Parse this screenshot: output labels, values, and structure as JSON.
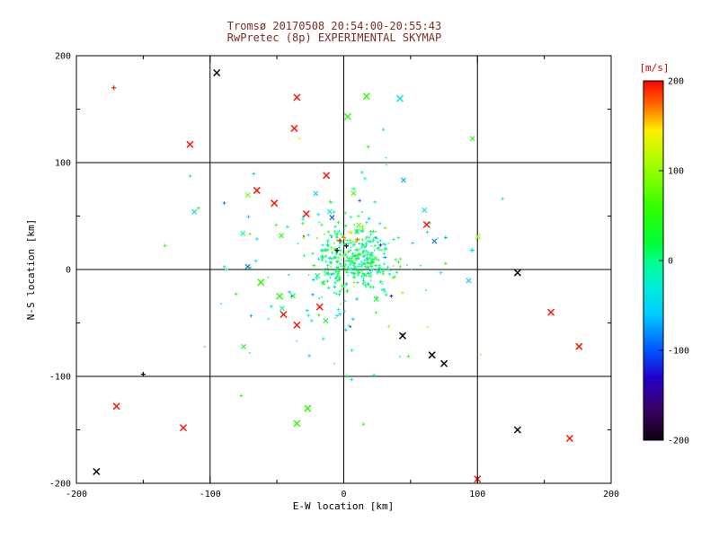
{
  "chart_data": {
    "type": "scatter",
    "title": "Tromsø 20170508 20:54:00-20:55:43",
    "subtitle": "RwPretec (8p) EXPERIMENTAL SKYMAP",
    "xlabel": "E-W location [km]",
    "ylabel": "N-S location [km]",
    "xlim": [
      -200,
      200
    ],
    "ylim": [
      -200,
      200
    ],
    "xticks": [
      -200,
      -100,
      0,
      100,
      200
    ],
    "yticks": [
      -200,
      -100,
      0,
      100,
      200
    ],
    "grid_lines": [
      -100,
      0,
      100
    ],
    "grid": true,
    "legend_position": "none",
    "colors": {
      "title_color": "#7d2b24",
      "axis_color": "#000000",
      "tick_label_color": "#000000",
      "colorbar_label_color": "#d40000",
      "background": "#ffffff"
    },
    "colorbar": {
      "label": "[m/s]",
      "min": -200,
      "max": 200,
      "ticks": [
        200,
        100,
        0,
        -100,
        -200
      ],
      "stops": [
        [
          -200,
          "#100010"
        ],
        [
          -165,
          "#3a0066"
        ],
        [
          -130,
          "#2200cc"
        ],
        [
          -100,
          "#0055ff"
        ],
        [
          -60,
          "#00ccff"
        ],
        [
          -30,
          "#00eedd"
        ],
        [
          0,
          "#00ff88"
        ],
        [
          20,
          "#00ff33"
        ],
        [
          60,
          "#33ff00"
        ],
        [
          110,
          "#aaff00"
        ],
        [
          145,
          "#ffee00"
        ],
        [
          170,
          "#ff7700"
        ],
        [
          200,
          "#ff0000"
        ]
      ]
    },
    "outlier_columns": [
      "x_km",
      "y_km",
      "velocity_ms",
      "marker"
    ],
    "outlier_points": [
      [
        -95,
        184,
        -195,
        "x"
      ],
      [
        -35,
        161,
        195,
        "x"
      ],
      [
        17,
        162,
        55,
        "x"
      ],
      [
        42,
        160,
        -35,
        "x"
      ],
      [
        -115,
        117,
        195,
        "x"
      ],
      [
        -172,
        170,
        195,
        "+"
      ],
      [
        3,
        143,
        55,
        "x"
      ],
      [
        -37,
        132,
        195,
        "x"
      ],
      [
        -13,
        88,
        195,
        "x"
      ],
      [
        -65,
        74,
        195,
        "x"
      ],
      [
        -52,
        62,
        195,
        "x"
      ],
      [
        -28,
        52,
        195,
        "x"
      ],
      [
        62,
        42,
        195,
        "x"
      ],
      [
        -62,
        -12,
        55,
        "x"
      ],
      [
        -48,
        -25,
        55,
        "x"
      ],
      [
        130,
        -3,
        -195,
        "x"
      ],
      [
        155,
        -40,
        195,
        "x"
      ],
      [
        176,
        -72,
        195,
        "x"
      ],
      [
        75,
        -88,
        -195,
        "x"
      ],
      [
        66,
        -80,
        -195,
        "x"
      ],
      [
        44,
        -62,
        -195,
        "x"
      ],
      [
        -35,
        -52,
        195,
        "x"
      ],
      [
        -45,
        -42,
        195,
        "x"
      ],
      [
        -18,
        -35,
        195,
        "x"
      ],
      [
        -170,
        -128,
        195,
        "x"
      ],
      [
        -120,
        -148,
        195,
        "x"
      ],
      [
        -150,
        -98,
        -195,
        "+"
      ],
      [
        -35,
        -144,
        55,
        "x"
      ],
      [
        -27,
        -130,
        55,
        "x"
      ],
      [
        130,
        -150,
        -195,
        "x"
      ],
      [
        169,
        -158,
        195,
        "x"
      ],
      [
        -185,
        -189,
        -195,
        "x"
      ],
      [
        100,
        -196,
        195,
        "x"
      ],
      [
        96,
        18,
        -35,
        "+"
      ],
      [
        0,
        30,
        170,
        "+"
      ],
      [
        5,
        35,
        145,
        "+"
      ],
      [
        -3,
        27,
        195,
        "+"
      ],
      [
        2,
        22,
        -195,
        "+"
      ],
      [
        10,
        28,
        170,
        "+"
      ],
      [
        -5,
        18,
        -195,
        "+"
      ],
      [
        14,
        40,
        110,
        "+"
      ]
    ],
    "generated_cloud": {
      "note": "dense central echo cloud approximated statistically from the screenshot",
      "core": {
        "count": 380,
        "center": [
          8,
          9
        ],
        "sigma": [
          15,
          17
        ],
        "velocity_mean": 8,
        "velocity_sigma": 35,
        "seed": 20170508
      },
      "halo": {
        "count": 150,
        "center": [
          0,
          5
        ],
        "sigma": [
          48,
          52
        ],
        "velocity_mean": 0,
        "velocity_sigma": 65,
        "seed": 8675309
      }
    }
  }
}
